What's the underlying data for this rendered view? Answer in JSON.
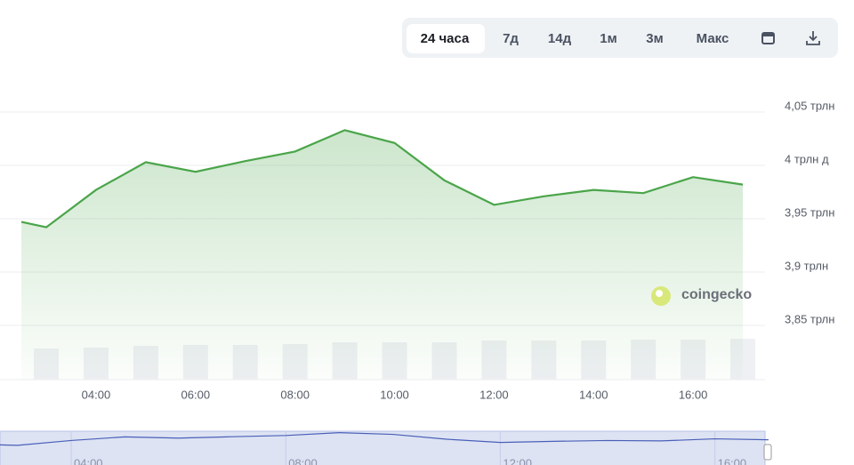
{
  "toolbar": {
    "buttons": [
      "24 часа",
      "7д",
      "14д",
      "1м",
      "3м",
      "Макс"
    ],
    "active": 0
  },
  "watermark": "coingecko",
  "chart_data": {
    "type": "area-line",
    "x": [
      2.5,
      3,
      4,
      5,
      6,
      7,
      8,
      9,
      10,
      11,
      12,
      13,
      14,
      15,
      16,
      17
    ],
    "series": [
      {
        "color": "#4aa54a",
        "values": [
          3.947,
          3.942,
          3.977,
          4.003,
          3.994,
          4.004,
          4.013,
          4.033,
          4.021,
          3.986,
          3.963,
          3.971,
          3.977,
          3.974,
          3.989,
          3.982
        ]
      }
    ],
    "volume": {
      "x": [
        3,
        4,
        5,
        6,
        7,
        8,
        9,
        10,
        11,
        12,
        13,
        14,
        15,
        16,
        17
      ],
      "values": [
        35,
        36,
        38,
        39,
        39,
        40,
        42,
        42,
        42,
        44,
        44,
        44,
        45,
        45,
        46
      ],
      "ylim": [
        0,
        100
      ],
      "color": "#eff0f4"
    },
    "xlim": [
      2.07,
      17.5
    ],
    "xticks": [
      {
        "value": 4,
        "label": "04:00"
      },
      {
        "value": 6,
        "label": "06:00"
      },
      {
        "value": 8,
        "label": "08:00"
      },
      {
        "value": 10,
        "label": "10:00"
      },
      {
        "value": 12,
        "label": "12:00"
      },
      {
        "value": 14,
        "label": "14:00"
      },
      {
        "value": 16,
        "label": "16:00"
      }
    ],
    "ylim": [
      3.82,
      4.05
    ],
    "yticks": [
      {
        "value": 4.05,
        "label": "4,05 трлн"
      },
      {
        "value": 4.0,
        "label": "4 трлн д"
      },
      {
        "value": 3.95,
        "label": "3,95 трлн"
      },
      {
        "value": 3.9,
        "label": "3,9 трлн"
      },
      {
        "value": 3.85,
        "label": "3,85 трлн"
      }
    ],
    "grid": true
  }
}
